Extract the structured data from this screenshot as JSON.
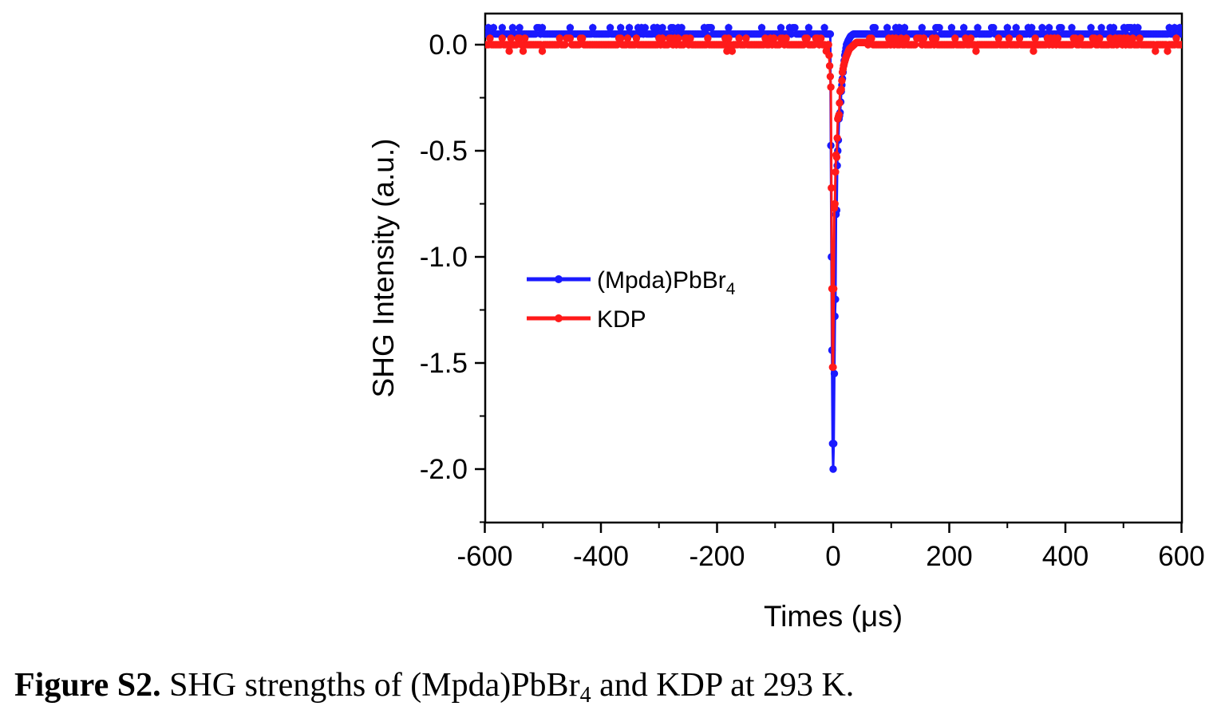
{
  "chart_data": {
    "type": "line",
    "xlabel": "Times (μs)",
    "ylabel": "SHG Intensity (a.u.)",
    "xlim": [
      -600,
      600
    ],
    "ylim": [
      -2.25,
      0.15
    ],
    "xticks": [
      -600,
      -400,
      -200,
      0,
      200,
      400,
      600
    ],
    "xtick_labels": [
      "-600",
      "-400",
      "-200",
      "0",
      "200",
      "400",
      "600"
    ],
    "yticks": [
      0.0,
      -0.5,
      -1.0,
      -1.5,
      -2.0
    ],
    "ytick_labels": [
      "0.0",
      "-0.5",
      "-1.0",
      "-1.5",
      "-2.0"
    ],
    "grid": false,
    "legend_placement": "center-left",
    "series": [
      {
        "name": "(Mpda)PbBr",
        "name_subscript": "4",
        "color": "#1a1aff",
        "baseline": 0.05,
        "noise_high": 0.08,
        "x": [
          -600,
          -5,
          -3,
          -1,
          0,
          1,
          2,
          3,
          4,
          5,
          6,
          7,
          8,
          9,
          10,
          12,
          14,
          16,
          18,
          20,
          23,
          26,
          30,
          35,
          40,
          600
        ],
        "y": [
          0.05,
          0.05,
          -1.0,
          -1.88,
          -2.0,
          -1.88,
          -1.55,
          -1.28,
          -1.2,
          -0.8,
          -0.78,
          -0.57,
          -0.5,
          -0.45,
          -0.35,
          -0.32,
          -0.22,
          -0.16,
          -0.1,
          -0.05,
          0.0,
          0.02,
          0.04,
          0.05,
          0.05,
          0.05
        ]
      },
      {
        "name": "KDP",
        "color": "#ff1a1a",
        "baseline": 0.0,
        "noise_high": 0.03,
        "x": [
          -600,
          -8,
          -4,
          -2,
          -1,
          0,
          1,
          2,
          3,
          4,
          5,
          6,
          8,
          10,
          12,
          14,
          16,
          18,
          20,
          22,
          25,
          28,
          32,
          36,
          40,
          50,
          600
        ],
        "y": [
          0.0,
          0.0,
          -0.2,
          -1.15,
          -1.52,
          -1.52,
          -1.15,
          -0.77,
          -0.75,
          -0.6,
          -0.52,
          -0.53,
          -0.35,
          -0.33,
          -0.22,
          -0.21,
          -0.13,
          -0.1,
          -0.08,
          -0.06,
          -0.04,
          -0.02,
          -0.01,
          0.0,
          0.01,
          0.01,
          0.02
        ]
      }
    ]
  },
  "caption": {
    "label": "Figure S2.",
    "text_before": " SHG strengths of (Mpda)PbBr",
    "subscript": "4",
    "text_after": " and KDP at 293 K."
  }
}
